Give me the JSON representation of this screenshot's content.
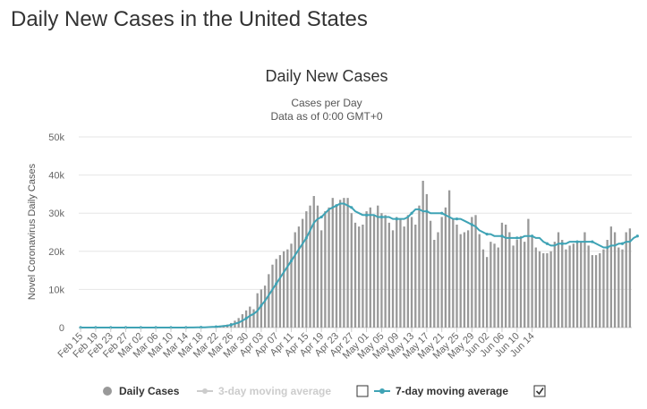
{
  "page": {
    "title": "Daily New Cases in the United States"
  },
  "chart_data": {
    "type": "bar",
    "title": "Daily New Cases",
    "subtitle_line1": "Cases per Day",
    "subtitle_line2": "Data as of 0:00 GMT+0",
    "ylabel": "Novel Coronavirus Daily Cases",
    "xlabel": "",
    "ylim": [
      0,
      50000
    ],
    "yticks": [
      0,
      10000,
      20000,
      30000,
      40000,
      50000
    ],
    "ytick_labels": [
      "0",
      "10k",
      "20k",
      "30k",
      "40k",
      "50k"
    ],
    "grid": true,
    "legend_position": "bottom",
    "x_start": "2020-02-15",
    "x_tick_labels": [
      "Feb 15",
      "Feb 19",
      "Feb 23",
      "Feb 27",
      "Mar 02",
      "Mar 06",
      "Mar 10",
      "Mar 14",
      "Mar 18",
      "Mar 22",
      "Mar 26",
      "Mar 30",
      "Apr 03",
      "Apr 07",
      "Apr 11",
      "Apr 15",
      "Apr 19",
      "Apr 23",
      "Apr 27",
      "May 01",
      "May 05",
      "May 09",
      "May 13",
      "May 17",
      "May 21",
      "May 25",
      "May 29",
      "Jun 02",
      "Jun 06",
      "Jun 10",
      "Jun 14"
    ],
    "series": [
      {
        "name": "Daily Cases",
        "type": "bar",
        "color": "#999999",
        "values": [
          0,
          0,
          0,
          0,
          0,
          0,
          0,
          0,
          0,
          0,
          0,
          0,
          0,
          0,
          0,
          0,
          0,
          0,
          0,
          0,
          0,
          0,
          0,
          0,
          0,
          10,
          10,
          20,
          30,
          50,
          70,
          100,
          100,
          150,
          200,
          300,
          400,
          500,
          600,
          800,
          1200,
          1800,
          2500,
          3500,
          4500,
          5500,
          4800,
          9000,
          10000,
          11000,
          14000,
          16500,
          18000,
          19000,
          20000,
          20500,
          22000,
          25000,
          26500,
          28500,
          30500,
          32000,
          34500,
          32000,
          25500,
          30500,
          31500,
          34000,
          32000,
          33500,
          34000,
          34000,
          30000,
          27500,
          26500,
          27000,
          30500,
          31500,
          29500,
          32000,
          30000,
          29500,
          27500,
          25500,
          29000,
          28500,
          26500,
          29500,
          29000,
          27000,
          32000,
          38500,
          35000,
          28000,
          23000,
          25000,
          29000,
          31500,
          36000,
          28500,
          27000,
          24500,
          25000,
          25500,
          29000,
          29500,
          24500,
          20500,
          18500,
          22500,
          22000,
          21000,
          27500,
          27000,
          25000,
          21500,
          23000,
          24000,
          22500,
          28500,
          24000,
          21000,
          20000,
          19500,
          19500,
          20000,
          22500,
          25000,
          23000,
          20500,
          21500,
          22000,
          22500,
          22500,
          25000,
          21500,
          19000,
          19000,
          19500,
          20500,
          23000,
          26500,
          25000,
          21000,
          20500,
          25000,
          26000
        ]
      },
      {
        "name": "3-day moving average",
        "type": "line",
        "color": "#cccccc",
        "visible": false
      },
      {
        "name": "7-day moving average",
        "type": "line",
        "color": "#3fa3b5",
        "visible": true,
        "values": [
          0,
          0,
          0,
          0,
          0,
          0,
          0,
          0,
          0,
          0,
          0,
          0,
          0,
          0,
          0,
          0,
          0,
          0,
          0,
          0,
          0,
          0,
          0,
          0,
          0,
          0,
          0,
          10,
          10,
          20,
          30,
          40,
          60,
          80,
          110,
          160,
          220,
          300,
          400,
          500,
          700,
          1000,
          1300,
          1800,
          2400,
          3100,
          3600,
          4400,
          5800,
          7000,
          8500,
          10000,
          11500,
          13000,
          14500,
          16000,
          17500,
          19000,
          20500,
          22000,
          23500,
          25500,
          27500,
          28500,
          29000,
          30000,
          31000,
          31500,
          32000,
          32500,
          32500,
          32000,
          31500,
          30500,
          30000,
          29500,
          29500,
          29500,
          29500,
          29000,
          29000,
          29000,
          29000,
          28500,
          28500,
          28500,
          28500,
          29000,
          30000,
          31000,
          31000,
          30500,
          30500,
          30000,
          30000,
          30000,
          30000,
          29500,
          29000,
          28500,
          28500,
          28500,
          28000,
          27500,
          27000,
          26500,
          25500,
          25000,
          24500,
          24500,
          24000,
          24000,
          24000,
          23500,
          23500,
          23500,
          23500,
          23500,
          24000,
          24000,
          24000,
          23500,
          23500,
          22500,
          22000,
          21500,
          21500,
          22000,
          22000,
          22000,
          22500,
          22500,
          22500,
          22500,
          22500,
          22500,
          22500,
          22000,
          21500,
          21000,
          21000,
          21500,
          21500,
          22000,
          22000,
          22500,
          22500,
          23500,
          24000
        ]
      }
    ]
  }
}
